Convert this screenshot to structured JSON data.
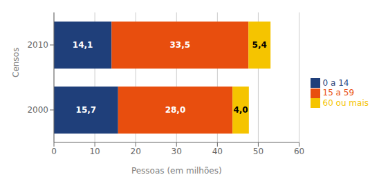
{
  "chart_data": {
    "type": "bar",
    "orientation": "horizontal",
    "stacked": true,
    "categories": [
      "2000",
      "2010"
    ],
    "series": [
      {
        "name": "0 a 14",
        "color": "#1f3f7a",
        "values": [
          15.7,
          14.1
        ],
        "value_labels": [
          "15,7",
          "14,1"
        ]
      },
      {
        "name": "15 a 59",
        "color": "#e84e0e",
        "values": [
          28.0,
          33.5
        ],
        "value_labels": [
          "28,0",
          "33,5"
        ]
      },
      {
        "name": "60 ou mais",
        "color": "#f5c400",
        "values": [
          4.0,
          5.4
        ],
        "value_labels": [
          "4,0",
          "5,4"
        ]
      }
    ],
    "xlabel": "Pessoas (em milhões)",
    "ylabel": "Censos",
    "xlim": [
      0,
      60
    ],
    "xticks": [
      0,
      10,
      20,
      30,
      40,
      50,
      60
    ],
    "grid": true,
    "legend": "right",
    "data_labels": true
  }
}
